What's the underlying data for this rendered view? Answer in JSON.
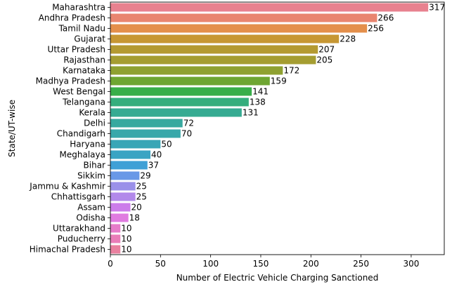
{
  "chart_data": {
    "type": "bar",
    "orientation": "horizontal",
    "title": "",
    "xlabel": "Number of Electric Vehicle Charging Sanctioned",
    "ylabel": "State/UT-wise",
    "xlim": [
      0,
      333
    ],
    "xticks": [
      0,
      50,
      100,
      150,
      200,
      250,
      300
    ],
    "xtick_labels": [
      "0",
      "50",
      "100",
      "150",
      "200",
      "250",
      "300"
    ],
    "grid": false,
    "legend": "none",
    "categories": [
      "Maharashtra",
      "Andhra Pradesh",
      "Tamil Nadu",
      "Gujarat",
      "Uttar Pradesh",
      "Rajasthan",
      "Karnataka",
      "Madhya Pradesh",
      "West Bengal",
      "Telangana",
      "Kerala",
      "Delhi",
      "Chandigarh",
      "Haryana",
      "Meghalaya",
      "Bihar",
      "Sikkim",
      "Jammu & Kashmir",
      "Chhattisgarh",
      "Assam",
      "Odisha",
      "Uttarakhand",
      "Puducherry",
      "Himachal Pradesh"
    ],
    "values": [
      317,
      266,
      256,
      228,
      207,
      205,
      172,
      159,
      141,
      138,
      131,
      72,
      70,
      50,
      40,
      37,
      29,
      25,
      25,
      20,
      18,
      10,
      10,
      10
    ],
    "value_labels": [
      "317",
      "266",
      "256",
      "228",
      "207",
      "205",
      "172",
      "159",
      "141",
      "138",
      "131",
      "72",
      "70",
      "50",
      "40",
      "37",
      "29",
      "25",
      "25",
      "20",
      "18",
      "10",
      "10",
      "10"
    ],
    "colors": [
      "#e8818f",
      "#e9856f",
      "#e48f4b",
      "#c79733",
      "#b49a31",
      "#a59d31",
      "#8fa131",
      "#6ea632",
      "#38ae4a",
      "#35ae7d",
      "#36ab92",
      "#37a99f",
      "#38a8aa",
      "#39a6b6",
      "#3aa4c3",
      "#3fa0d6",
      "#6998e7",
      "#9a90e9",
      "#b289ea",
      "#cc7cea",
      "#e07be0",
      "#e67cc9",
      "#e97db8",
      "#e9809f"
    ]
  }
}
